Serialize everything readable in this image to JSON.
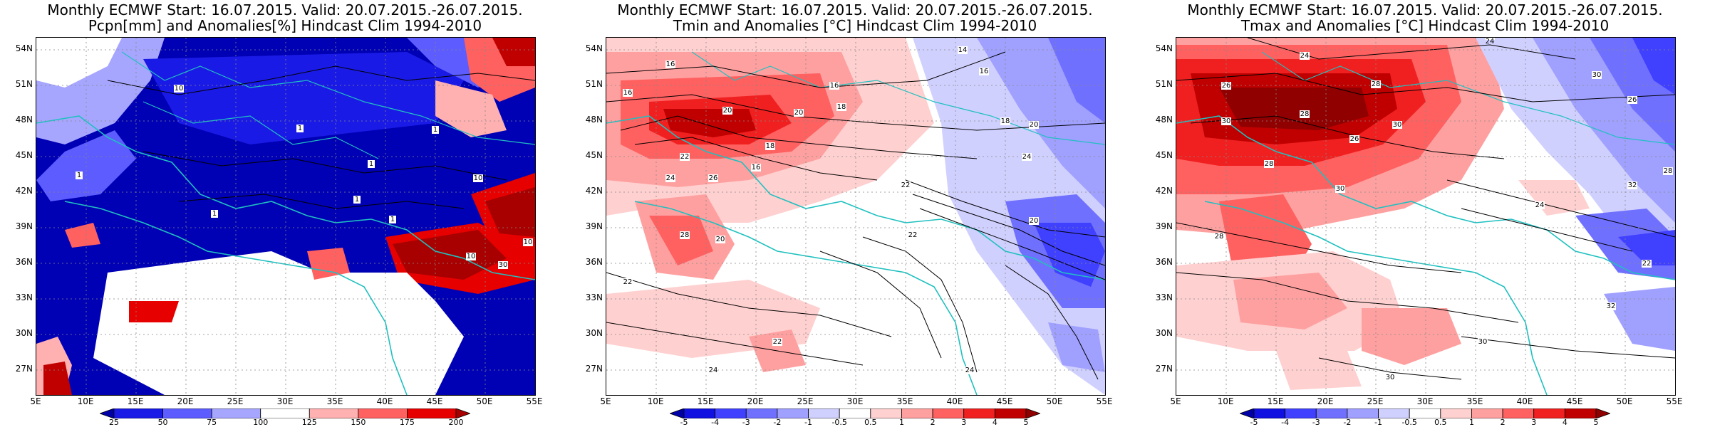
{
  "lat_labels": [
    "54N",
    "51N",
    "48N",
    "45N",
    "42N",
    "39N",
    "36N",
    "33N",
    "30N",
    "27N"
  ],
  "lon_labels": [
    "5E",
    "10E",
    "15E",
    "20E",
    "25E",
    "30E",
    "35E",
    "40E",
    "45E",
    "50E",
    "55E"
  ],
  "panels": [
    {
      "title1": "Monthly ECMWF Start: 16.07.2015. Valid: 20.07.2015.-26.07.2015.",
      "title2": "Pcpn[mm] and Anomalies[%] Hindcast Clim 1994-2010",
      "colorbar_labels": [
        "25",
        "50",
        "75",
        "100",
        "125",
        "150",
        "175",
        "200"
      ],
      "colorbar_colors": [
        "#0000a8",
        "#1a1ae6",
        "#5c5cff",
        "#a6a6ff",
        "#ffffff",
        "#ffb0b0",
        "#ff6060",
        "#e60000",
        "#a80000"
      ],
      "contour_labels": [
        "10",
        "1",
        "1",
        "1",
        "1",
        "1",
        "1",
        "1",
        "10",
        "10",
        "10",
        "30"
      ]
    },
    {
      "title1": "Monthly ECMWF Start: 16.07.2015. Valid: 20.07.2015.-26.07.2015.",
      "title2": "Tmin and Anomalies [°C] Hindcast Clim 1994-2010",
      "colorbar_labels": [
        "-5",
        "-4",
        "-3",
        "-2",
        "-1",
        "-0.5",
        "0.5",
        "1",
        "2",
        "3",
        "4",
        "5"
      ],
      "colorbar_colors": [
        "#0000a8",
        "#1010e0",
        "#4040ff",
        "#7070ff",
        "#a0a0ff",
        "#d0d0ff",
        "#ffffff",
        "#ffd0d0",
        "#ffa0a0",
        "#ff6060",
        "#f02020",
        "#c00000",
        "#900000"
      ],
      "contour_labels": [
        "16",
        "16",
        "18",
        "20",
        "14",
        "16",
        "16",
        "20",
        "20",
        "22",
        "24",
        "26",
        "28",
        "16",
        "18",
        "18",
        "22",
        "24",
        "22",
        "20",
        "22",
        "24",
        "24",
        "22",
        "20"
      ]
    },
    {
      "title1": "Monthly ECMWF Start: 16.07.2015. Valid: 20.07.2015.-26.07.2015.",
      "title2": "Tmax and Anomalies [°C] Hindcast Clim 1994-2010",
      "colorbar_labels": [
        "-5",
        "-4",
        "-3",
        "-2",
        "-1",
        "-0.5",
        "0.5",
        "1",
        "2",
        "3",
        "4",
        "5"
      ],
      "colorbar_colors": [
        "#0000a8",
        "#1010e0",
        "#4040ff",
        "#7070ff",
        "#a0a0ff",
        "#d0d0ff",
        "#ffffff",
        "#ffd0d0",
        "#ffa0a0",
        "#ff6060",
        "#f02020",
        "#c00000",
        "#900000"
      ],
      "contour_labels": [
        "24",
        "26",
        "28",
        "30",
        "28",
        "26",
        "24",
        "28",
        "30",
        "32",
        "30",
        "26",
        "28",
        "22",
        "24",
        "30",
        "28",
        "30",
        "30",
        "32"
      ]
    }
  ]
}
